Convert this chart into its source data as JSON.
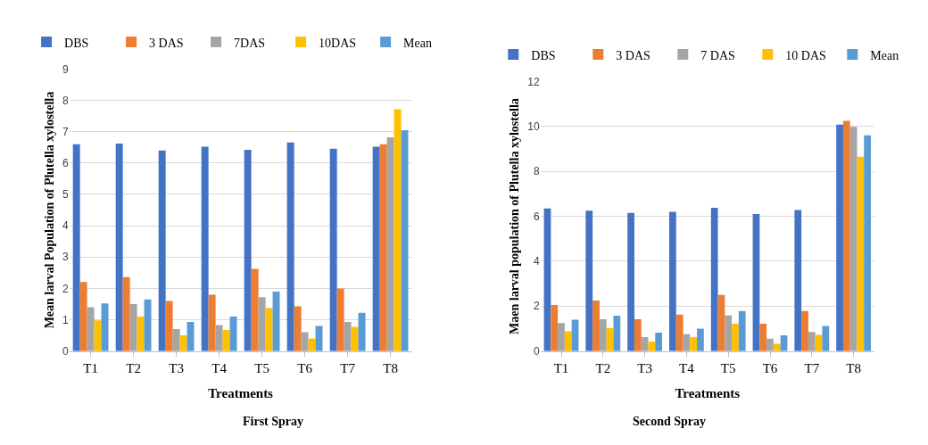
{
  "chart_data": [
    {
      "type": "bar",
      "title": "First Spray",
      "xlabel": "Treatments",
      "ylabel": "Mean larval Population of Plutella xylostella",
      "categories": [
        "T1",
        "T2",
        "T3",
        "T4",
        "T5",
        "T6",
        "T7",
        "T8"
      ],
      "series": [
        {
          "name": "DBS",
          "color": "#4472c4",
          "values": [
            6.6,
            6.62,
            6.4,
            6.52,
            6.42,
            6.66,
            6.46,
            6.52
          ]
        },
        {
          "name": "3 DAS",
          "color": "#ed7d31",
          "values": [
            2.2,
            2.36,
            1.6,
            1.8,
            2.62,
            1.43,
            2.0,
            6.6
          ]
        },
        {
          "name": "7DAS",
          "color": "#a5a5a5",
          "values": [
            1.4,
            1.5,
            0.7,
            0.83,
            1.72,
            0.6,
            0.93,
            6.82
          ]
        },
        {
          "name": "10DAS",
          "color": "#ffc000",
          "values": [
            0.98,
            1.1,
            0.5,
            0.67,
            1.37,
            0.4,
            0.77,
            7.72
          ]
        },
        {
          "name": "Mean",
          "color": "#5b9bd5",
          "values": [
            1.52,
            1.65,
            0.93,
            1.1,
            1.9,
            0.8,
            1.22,
            7.05
          ]
        }
      ],
      "ylim": [
        0,
        9
      ],
      "yticks": [
        0,
        1,
        2,
        3,
        4,
        5,
        6,
        7,
        8,
        9
      ],
      "grid": "y",
      "legend": "top"
    },
    {
      "type": "bar",
      "title": "Second Spray",
      "xlabel": "Treatments",
      "ylabel": "Maen larval population of Plutella xylostella",
      "categories": [
        "T1",
        "T2",
        "T3",
        "T4",
        "T5",
        "T6",
        "T7",
        "T8"
      ],
      "series": [
        {
          "name": "DBS",
          "color": "#4472c4",
          "values": [
            6.35,
            6.25,
            6.15,
            6.2,
            6.38,
            6.1,
            6.28,
            10.08
          ]
        },
        {
          "name": "3 DAS",
          "color": "#ed7d31",
          "values": [
            2.05,
            2.25,
            1.42,
            1.62,
            2.5,
            1.22,
            1.78,
            10.25
          ]
        },
        {
          "name": "7 DAS",
          "color": "#a5a5a5",
          "values": [
            1.25,
            1.42,
            0.62,
            0.75,
            1.58,
            0.55,
            0.85,
            9.98
          ]
        },
        {
          "name": "10 DAS",
          "color": "#ffc000",
          "values": [
            0.88,
            1.02,
            0.42,
            0.62,
            1.22,
            0.32,
            0.72,
            8.65
          ]
        },
        {
          "name": "Mean",
          "color": "#5b9bd5",
          "values": [
            1.4,
            1.57,
            0.82,
            1.0,
            1.78,
            0.7,
            1.12,
            9.6
          ]
        }
      ],
      "ylim": [
        0,
        12
      ],
      "yticks": [
        0,
        2,
        4,
        6,
        8,
        10,
        12
      ],
      "grid": "y",
      "legend": "top"
    }
  ]
}
